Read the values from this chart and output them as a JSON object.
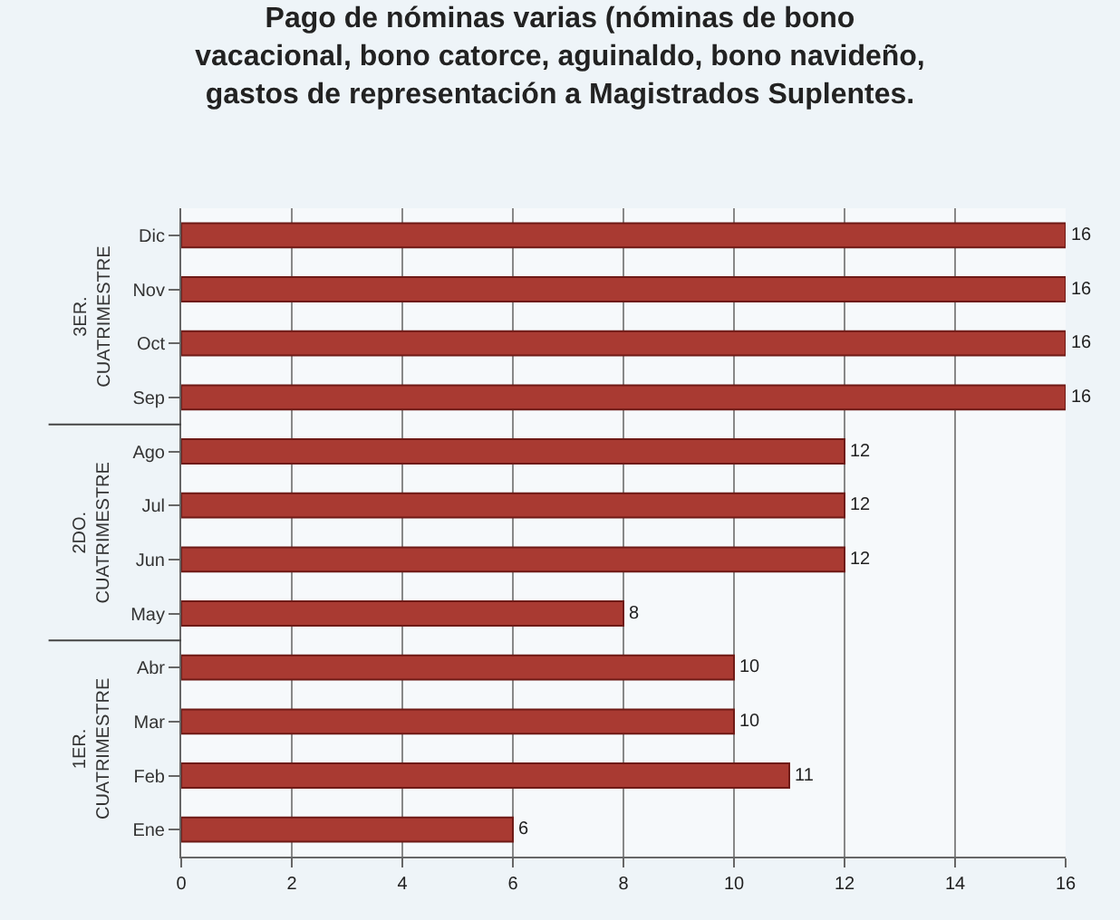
{
  "chart_data": {
    "type": "bar",
    "orientation": "horizontal",
    "title": "Pago de nóminas varias (nóminas de bono\nvacacional, bono catorce, aguinaldo, bono navideño,\ngastos de representación a Magistrados Suplentes.",
    "categories": [
      "Dic",
      "Nov",
      "Oct",
      "Sep",
      "Ago",
      "Jul",
      "Jun",
      "May",
      "Abr",
      "Mar",
      "Feb",
      "Ene"
    ],
    "values": [
      16,
      16,
      16,
      16,
      12,
      12,
      12,
      8,
      10,
      10,
      11,
      6
    ],
    "color": "#a93a32",
    "xlim": [
      0,
      16
    ],
    "xticks": [
      0,
      2,
      4,
      6,
      8,
      10,
      12,
      14,
      16
    ],
    "grid": "x",
    "data_labels": true,
    "annotations": [
      "3ER.\nCUATRIMESTRE",
      "2DO.\nCUATRIMESTRE",
      "1ER.\nCUATRIMESTRE"
    ]
  }
}
